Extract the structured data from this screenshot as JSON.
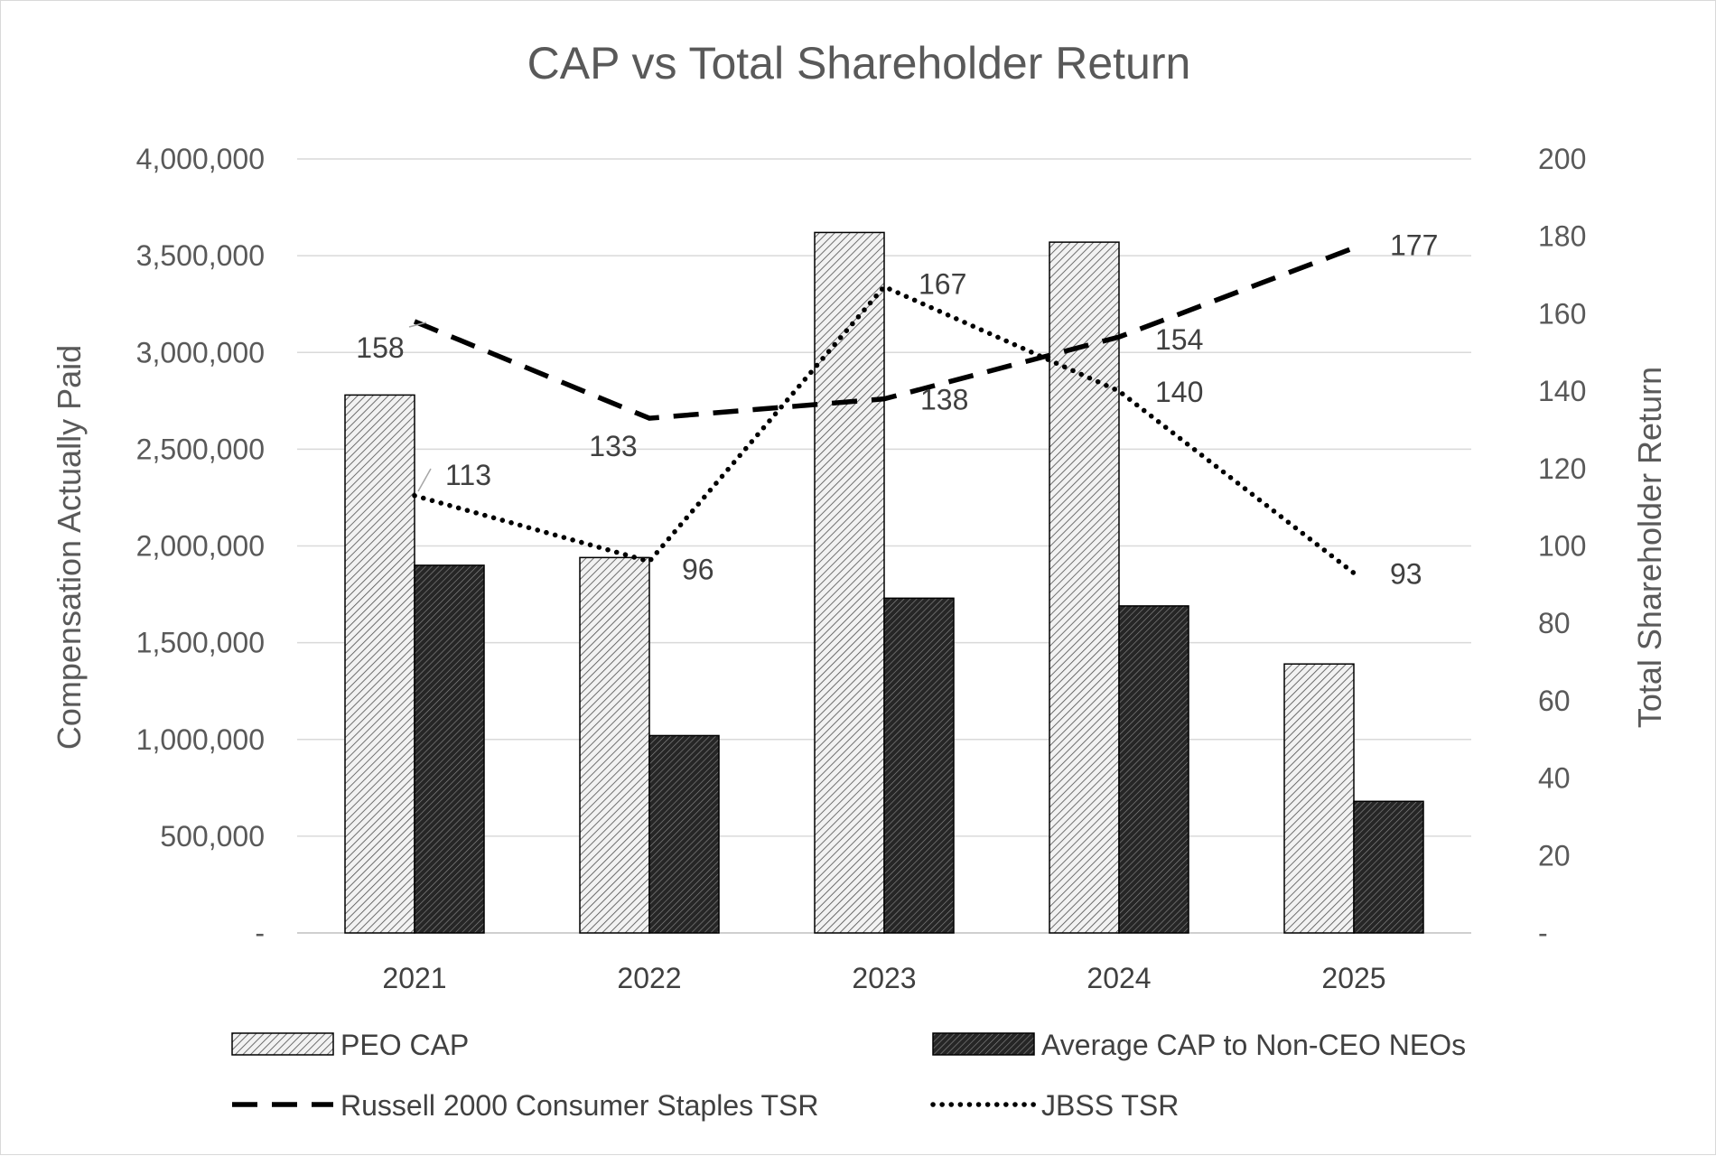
{
  "chart_data": {
    "type": "bar",
    "title": "CAP vs Total Shareholder Return",
    "categories": [
      "2021",
      "2022",
      "2023",
      "2024",
      "2025"
    ],
    "ylabel": "Compensation Actually Paid",
    "y2label": "Total Shareholder Return",
    "ylim": [
      0,
      4000000
    ],
    "y2lim": [
      0,
      200
    ],
    "y_ticks": [
      "-",
      "500,000",
      "1,000,000",
      "1,500,000",
      "2,000,000",
      "2,500,000",
      "3,000,000",
      "3,500,000",
      "4,000,000"
    ],
    "y2_ticks": [
      "-",
      "20",
      "40",
      "60",
      "80",
      "100",
      "120",
      "140",
      "160",
      "180",
      "200"
    ],
    "grid": true,
    "legend_position": "bottom",
    "series": [
      {
        "name": "PEO CAP",
        "kind": "bar",
        "axis": "left",
        "pattern": "light-hatch",
        "values": [
          2780000,
          1940000,
          3620000,
          3570000,
          1390000
        ]
      },
      {
        "name": "Average CAP to Non-CEO NEOs",
        "kind": "bar",
        "axis": "left",
        "pattern": "dark-hatch",
        "values": [
          1900000,
          1020000,
          1730000,
          1690000,
          680000
        ]
      },
      {
        "name": "Russell 2000 Consumer Staples TSR",
        "kind": "line",
        "axis": "right",
        "style": "dashed",
        "values": [
          158,
          133,
          138,
          154,
          177
        ],
        "labels": [
          "158",
          "133",
          "138",
          "154",
          "177"
        ]
      },
      {
        "name": "JBSS TSR",
        "kind": "line",
        "axis": "right",
        "style": "dotted",
        "values": [
          113,
          96,
          167,
          140,
          93
        ],
        "labels": [
          "113",
          "96",
          "167",
          "140",
          "93"
        ]
      }
    ]
  }
}
